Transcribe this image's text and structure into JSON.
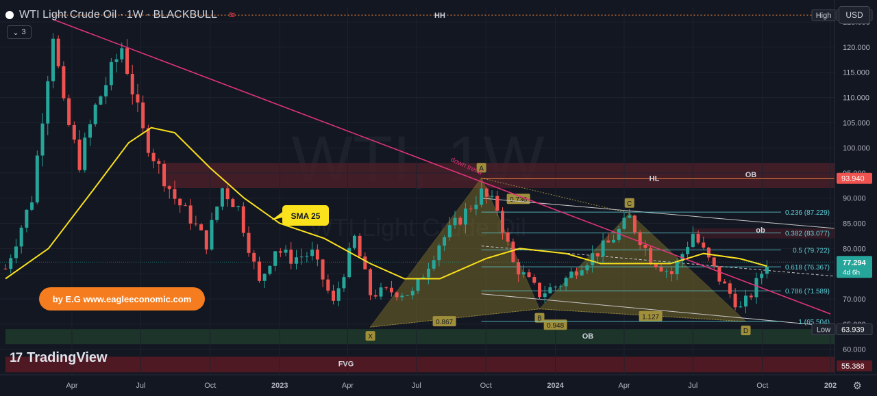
{
  "header": {
    "title": "WTI Light Crude Oil · 1W · BLACKBULL",
    "wave_icon": "wave-icon",
    "indicator_count": "3",
    "currency": "USD"
  },
  "branding": {
    "watermark_large": "WTI, 1W",
    "watermark_small": "WTI Light Crude Oil",
    "eagle_label": "by E.G www.eagleeconomic.com",
    "tradingview_label": "TradingView"
  },
  "colors": {
    "background": "#131722",
    "up": "#26a69a",
    "down": "#ef5350",
    "sma": "#fbe21c",
    "trendline": "#e0337a",
    "ob_zone": "#4a1e29",
    "green_zone": "#1f3a2a",
    "fvg_zone": "#5a1a24",
    "pattern_fill": "#8b7a2a",
    "fib_line": "#5dd0d8"
  },
  "chart_data": {
    "type": "candlestick",
    "symbol": "WTI Light Crude Oil",
    "timeframe": "1W",
    "y_axis": {
      "range": [
        56,
        128
      ],
      "ticks": [
        60,
        65,
        70,
        75,
        80,
        85,
        90,
        95,
        100,
        105,
        110,
        115,
        120,
        125
      ],
      "tick_labels": [
        "60.000",
        "65.000",
        "70.000",
        "75.000",
        "80.000",
        "85.000",
        "90.000",
        "95.000",
        "100.000",
        "105.000",
        "110.000",
        "115.000",
        "120.000",
        "125.000"
      ]
    },
    "x_axis": {
      "range": [
        "2022-01-03",
        "2024-12-30"
      ],
      "labels": [
        {
          "date": "2022-04-01",
          "text": "Apr",
          "bold": false
        },
        {
          "date": "2022-07-01",
          "text": "Jul",
          "bold": false
        },
        {
          "date": "2022-10-01",
          "text": "Oct",
          "bold": false
        },
        {
          "date": "2023-01-01",
          "text": "2023",
          "bold": true
        },
        {
          "date": "2023-04-01",
          "text": "Apr",
          "bold": false
        },
        {
          "date": "2023-07-01",
          "text": "Jul",
          "bold": false
        },
        {
          "date": "2023-10-01",
          "text": "Oct",
          "bold": false
        },
        {
          "date": "2024-01-01",
          "text": "2024",
          "bold": true
        },
        {
          "date": "2024-04-01",
          "text": "Apr",
          "bold": false
        },
        {
          "date": "2024-07-01",
          "text": "Jul",
          "bold": false
        },
        {
          "date": "2024-10-01",
          "text": "Oct",
          "bold": false
        },
        {
          "date": "2024-12-30",
          "text": "202",
          "bold": true
        }
      ]
    },
    "candle_keypoints": [
      [
        "2022-01-03",
        76
      ],
      [
        "2022-02-07",
        90
      ],
      [
        "2022-03-07",
        123
      ],
      [
        "2022-03-21",
        108
      ],
      [
        "2022-04-11",
        97
      ],
      [
        "2022-05-02",
        108
      ],
      [
        "2022-06-06",
        120
      ],
      [
        "2022-07-04",
        103
      ],
      [
        "2022-07-25",
        96
      ],
      [
        "2022-08-15",
        90
      ],
      [
        "2022-09-05",
        86
      ],
      [
        "2022-09-26",
        81
      ],
      [
        "2022-10-17",
        92
      ],
      [
        "2022-11-07",
        88
      ],
      [
        "2022-12-05",
        73
      ],
      [
        "2022-12-26",
        80
      ],
      [
        "2023-01-16",
        78
      ],
      [
        "2023-02-13",
        79
      ],
      [
        "2023-03-13",
        69
      ],
      [
        "2023-04-10",
        82
      ],
      [
        "2023-05-01",
        71
      ],
      [
        "2023-05-29",
        71.5
      ],
      [
        "2023-06-26",
        71
      ],
      [
        "2023-07-31",
        81
      ],
      [
        "2023-09-25",
        91
      ],
      [
        "2023-10-16",
        88
      ],
      [
        "2023-11-06",
        77
      ],
      [
        "2023-12-11",
        71
      ],
      [
        "2024-01-08",
        73
      ],
      [
        "2024-02-05",
        77
      ],
      [
        "2024-03-11",
        81
      ],
      [
        "2024-04-08",
        86
      ],
      [
        "2024-05-06",
        78
      ],
      [
        "2024-06-03",
        75
      ],
      [
        "2024-07-01",
        83
      ],
      [
        "2024-08-05",
        74
      ],
      [
        "2024-09-02",
        68
      ],
      [
        "2024-09-16",
        71
      ],
      [
        "2024-10-07",
        77.3
      ]
    ],
    "sma": {
      "label": "SMA 25",
      "points": [
        [
          "2022-01-03",
          74
        ],
        [
          "2022-03-01",
          80
        ],
        [
          "2022-05-01",
          92
        ],
        [
          "2022-06-15",
          101
        ],
        [
          "2022-07-15",
          104
        ],
        [
          "2022-08-15",
          103
        ],
        [
          "2022-10-01",
          96
        ],
        [
          "2022-11-15",
          90
        ],
        [
          "2023-01-01",
          85
        ],
        [
          "2023-03-01",
          82
        ],
        [
          "2023-05-01",
          77
        ],
        [
          "2023-06-15",
          74
        ],
        [
          "2023-08-01",
          74
        ],
        [
          "2023-10-01",
          78
        ],
        [
          "2023-11-15",
          80
        ],
        [
          "2024-01-15",
          79
        ],
        [
          "2024-03-01",
          77
        ],
        [
          "2024-04-15",
          77
        ],
        [
          "2024-06-01",
          77
        ],
        [
          "2024-07-15",
          79
        ],
        [
          "2024-09-01",
          78
        ],
        [
          "2024-10-07",
          76.5
        ]
      ]
    },
    "trendline": {
      "label": "down trend",
      "from": [
        "2022-03-07",
        125.5
      ],
      "to": [
        "2024-12-30",
        67
      ]
    },
    "zones": [
      {
        "label": "OB",
        "from": "2022-08-01",
        "y": [
          92,
          97
        ]
      },
      {
        "label": "OB",
        "from": "2022-01-03",
        "y": [
          61,
          64
        ]
      },
      {
        "label": "FVG",
        "from": "2022-01-03",
        "y": [
          55.4,
          58.5
        ]
      },
      {
        "label": "ob",
        "from": "2024-07-01",
        "y": [
          82,
          84
        ]
      }
    ],
    "level_lines": [
      {
        "label": "HH",
        "y": 126.347,
        "from": "2022-03-07"
      },
      {
        "label": "HL",
        "y": 93.94,
        "from": "2023-09-25"
      }
    ],
    "harmonic_pattern": {
      "points": [
        {
          "label": "X",
          "date": "2023-05-01",
          "price": 64.4
        },
        {
          "label": "A",
          "date": "2023-09-25",
          "price": 94
        },
        {
          "label": "B",
          "date": "2023-12-11",
          "price": 68
        },
        {
          "label": "C",
          "date": "2024-04-08",
          "price": 87
        },
        {
          "label": "D",
          "date": "2024-09-09",
          "price": 65.5
        }
      ],
      "ratios": [
        {
          "text": "0.867",
          "date": "2023-08-07",
          "price": 65.5
        },
        {
          "text": "0.736",
          "date": "2023-11-13",
          "price": 89.8
        },
        {
          "text": "0.948",
          "date": "2024-01-01",
          "price": 64.8
        },
        {
          "text": "1.127",
          "date": "2024-05-06",
          "price": 66.5
        }
      ]
    },
    "fib_levels": [
      {
        "label": "0.236 (87.229)",
        "y": 87.229
      },
      {
        "label": "0.382 (83.077)",
        "y": 83.077
      },
      {
        "label": "0.5 (79.722)",
        "y": 79.722
      },
      {
        "label": "0.618 (76.367)",
        "y": 76.367
      },
      {
        "label": "0.786 (71.589)",
        "y": 71.589
      },
      {
        "label": "1 (65.504)",
        "y": 65.504
      }
    ],
    "price_tags": [
      {
        "text": "High",
        "value": "126.347",
        "kind": "high"
      },
      {
        "text": "",
        "value": "93.940",
        "kind": "level"
      },
      {
        "text": "4d 6h",
        "value": "77.294",
        "kind": "current"
      },
      {
        "text": "Low",
        "value": "63.939",
        "kind": "low"
      },
      {
        "text": "",
        "value": "55.388",
        "kind": "fvg"
      }
    ]
  }
}
